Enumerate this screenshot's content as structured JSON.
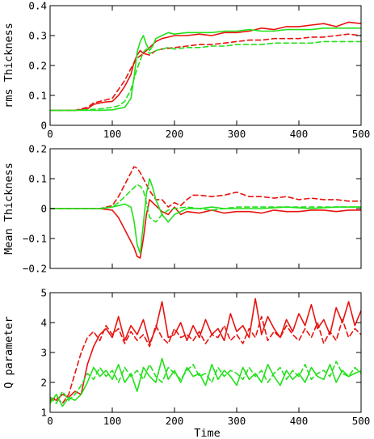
{
  "colors": {
    "red": "#e8130f",
    "green": "#22e11a",
    "black": "#000000"
  },
  "chart_data": [
    {
      "type": "line",
      "title": "",
      "xlabel": "",
      "ylabel": "rms Thickness",
      "xlim": [
        0,
        500
      ],
      "ylim": [
        0,
        0.4
      ],
      "xticks": [
        0,
        100,
        200,
        300,
        400,
        500
      ],
      "xtick_labels": [
        "0",
        "100",
        "200",
        "300",
        "400",
        "500"
      ],
      "yticks": [
        0,
        0.1,
        0.2,
        0.3,
        0.4
      ],
      "ytick_labels": [
        "0",
        "0.1",
        "0.2",
        "0.3",
        "0.4"
      ],
      "grid": false,
      "series": [
        {
          "color": "red",
          "style": "solid",
          "x": [
            0,
            40,
            60,
            70,
            80,
            90,
            100,
            110,
            120,
            130,
            135,
            140,
            145,
            150,
            160,
            170,
            180,
            190,
            200,
            220,
            240,
            260,
            280,
            300,
            320,
            340,
            360,
            380,
            400,
            420,
            440,
            460,
            480,
            500
          ],
          "y": [
            0.05,
            0.05,
            0.055,
            0.07,
            0.075,
            0.078,
            0.08,
            0.1,
            0.13,
            0.17,
            0.21,
            0.235,
            0.25,
            0.24,
            0.26,
            0.28,
            0.29,
            0.295,
            0.3,
            0.3,
            0.305,
            0.3,
            0.31,
            0.31,
            0.315,
            0.325,
            0.32,
            0.33,
            0.33,
            0.335,
            0.34,
            0.33,
            0.345,
            0.34
          ]
        },
        {
          "color": "red",
          "style": "dashed",
          "x": [
            0,
            40,
            60,
            70,
            80,
            90,
            100,
            110,
            120,
            130,
            140,
            150,
            160,
            170,
            180,
            200,
            220,
            240,
            260,
            280,
            300,
            320,
            340,
            360,
            380,
            400,
            420,
            440,
            460,
            480,
            500
          ],
          "y": [
            0.05,
            0.05,
            0.06,
            0.075,
            0.08,
            0.085,
            0.09,
            0.12,
            0.15,
            0.19,
            0.225,
            0.24,
            0.235,
            0.25,
            0.255,
            0.26,
            0.265,
            0.27,
            0.27,
            0.275,
            0.28,
            0.285,
            0.285,
            0.29,
            0.29,
            0.29,
            0.295,
            0.295,
            0.3,
            0.305,
            0.3
          ]
        },
        {
          "color": "green",
          "style": "solid",
          "x": [
            0,
            40,
            80,
            100,
            120,
            130,
            135,
            140,
            145,
            150,
            155,
            160,
            165,
            170,
            180,
            190,
            200,
            220,
            240,
            260,
            280,
            300,
            320,
            340,
            360,
            380,
            400,
            420,
            440,
            460,
            480,
            500
          ],
          "y": [
            0.05,
            0.05,
            0.05,
            0.052,
            0.06,
            0.09,
            0.16,
            0.245,
            0.28,
            0.3,
            0.27,
            0.25,
            0.265,
            0.29,
            0.3,
            0.31,
            0.305,
            0.31,
            0.31,
            0.31,
            0.315,
            0.315,
            0.32,
            0.315,
            0.315,
            0.32,
            0.32,
            0.32,
            0.325,
            0.325,
            0.325,
            0.325
          ]
        },
        {
          "color": "green",
          "style": "dashed",
          "x": [
            0,
            40,
            80,
            100,
            110,
            120,
            130,
            140,
            150,
            155,
            160,
            170,
            180,
            190,
            200,
            220,
            240,
            260,
            280,
            300,
            320,
            340,
            360,
            380,
            400,
            420,
            440,
            460,
            480,
            500
          ],
          "y": [
            0.05,
            0.05,
            0.055,
            0.06,
            0.065,
            0.08,
            0.12,
            0.19,
            0.245,
            0.255,
            0.24,
            0.25,
            0.255,
            0.26,
            0.255,
            0.26,
            0.26,
            0.265,
            0.265,
            0.27,
            0.27,
            0.27,
            0.275,
            0.275,
            0.275,
            0.275,
            0.28,
            0.28,
            0.28,
            0.28
          ]
        }
      ]
    },
    {
      "type": "line",
      "title": "",
      "xlabel": "",
      "ylabel": "Mean Thickness",
      "xlim": [
        0,
        500
      ],
      "ylim": [
        -0.2,
        0.2
      ],
      "xticks": [
        0,
        100,
        200,
        300,
        400,
        500
      ],
      "xtick_labels": [
        "0",
        "100",
        "200",
        "300",
        "400",
        "500"
      ],
      "yticks": [
        -0.2,
        -0.1,
        0,
        0.1,
        0.2
      ],
      "ytick_labels": [
        "−0.2",
        "−0.1",
        "0",
        "0.1",
        "0.2"
      ],
      "grid": false,
      "series": [
        {
          "color": "red",
          "style": "solid",
          "x": [
            0,
            80,
            100,
            110,
            120,
            130,
            135,
            140,
            145,
            150,
            155,
            160,
            170,
            180,
            190,
            200,
            210,
            220,
            240,
            260,
            280,
            300,
            320,
            340,
            360,
            380,
            400,
            420,
            440,
            460,
            480,
            500
          ],
          "y": [
            0,
            0,
            -0.005,
            -0.03,
            -0.07,
            -0.11,
            -0.13,
            -0.16,
            -0.165,
            -0.1,
            -0.02,
            0.03,
            0.01,
            -0.01,
            -0.02,
            0.005,
            -0.02,
            -0.01,
            -0.015,
            -0.005,
            -0.015,
            -0.01,
            -0.01,
            -0.015,
            -0.005,
            -0.01,
            -0.01,
            -0.005,
            -0.005,
            -0.01,
            -0.005,
            -0.005
          ]
        },
        {
          "color": "red",
          "style": "dashed",
          "x": [
            0,
            80,
            100,
            110,
            120,
            130,
            135,
            140,
            145,
            150,
            160,
            170,
            180,
            190,
            200,
            210,
            220,
            230,
            240,
            260,
            280,
            300,
            320,
            340,
            360,
            380,
            400,
            420,
            440,
            460,
            480,
            500
          ],
          "y": [
            0,
            0,
            0.01,
            0.04,
            0.08,
            0.12,
            0.14,
            0.135,
            0.12,
            0.1,
            0.06,
            0.03,
            0.03,
            0.005,
            0.02,
            0.01,
            0.03,
            0.045,
            0.045,
            0.04,
            0.045,
            0.055,
            0.04,
            0.04,
            0.035,
            0.04,
            0.03,
            0.035,
            0.03,
            0.03,
            0.025,
            0.025
          ]
        },
        {
          "color": "green",
          "style": "solid",
          "x": [
            0,
            80,
            100,
            110,
            120,
            130,
            135,
            140,
            145,
            150,
            155,
            160,
            165,
            170,
            180,
            190,
            200,
            220,
            240,
            260,
            280,
            300,
            340,
            380,
            420,
            460,
            500
          ],
          "y": [
            0,
            0,
            0.005,
            0.01,
            0.015,
            0.005,
            -0.04,
            -0.12,
            -0.15,
            -0.05,
            0.05,
            0.1,
            0.07,
            0.03,
            -0.02,
            -0.045,
            -0.02,
            0.0,
            0.0,
            0.005,
            0.0,
            0.0,
            0.0,
            0.005,
            0.0,
            0.005,
            0.005
          ]
        },
        {
          "color": "green",
          "style": "dashed",
          "x": [
            0,
            80,
            100,
            110,
            120,
            130,
            140,
            145,
            150,
            155,
            160,
            170,
            180,
            190,
            200,
            220,
            240,
            260,
            280,
            300,
            340,
            380,
            420,
            460,
            500
          ],
          "y": [
            0,
            0,
            0.005,
            0.02,
            0.04,
            0.06,
            0.08,
            0.075,
            0.06,
            0.02,
            -0.03,
            -0.045,
            -0.02,
            -0.005,
            0.0,
            0.005,
            0.0,
            -0.005,
            0.0,
            0.005,
            0.005,
            0.005,
            0.005,
            0.005,
            0.005
          ]
        }
      ]
    },
    {
      "type": "line",
      "title": "",
      "xlabel": "Time",
      "ylabel": "Q parameter",
      "xlim": [
        0,
        500
      ],
      "ylim": [
        1,
        5
      ],
      "xticks": [
        0,
        100,
        200,
        300,
        400,
        500
      ],
      "xtick_labels": [
        "0",
        "100",
        "200",
        "300",
        "400",
        "500"
      ],
      "yticks": [
        1,
        2,
        3,
        4,
        5
      ],
      "ytick_labels": [
        "1",
        "2",
        "3",
        "4",
        "5"
      ],
      "grid": false,
      "series": [
        {
          "color": "red",
          "style": "solid",
          "x": [
            0,
            10,
            20,
            30,
            40,
            50,
            60,
            70,
            80,
            90,
            100,
            110,
            120,
            130,
            140,
            150,
            160,
            170,
            180,
            190,
            200,
            210,
            220,
            230,
            240,
            250,
            260,
            270,
            280,
            290,
            300,
            310,
            320,
            330,
            340,
            350,
            360,
            370,
            380,
            390,
            400,
            410,
            420,
            430,
            440,
            450,
            460,
            470,
            480,
            490,
            500
          ],
          "y": [
            1.5,
            1.4,
            1.6,
            1.5,
            1.7,
            1.6,
            2.6,
            3.2,
            3.6,
            3.8,
            3.5,
            4.2,
            3.4,
            3.9,
            3.6,
            4.1,
            3.3,
            3.8,
            4.7,
            3.5,
            3.6,
            4.0,
            3.4,
            3.9,
            3.5,
            4.1,
            3.6,
            3.8,
            3.4,
            4.3,
            3.7,
            3.9,
            3.5,
            4.8,
            3.6,
            4.2,
            3.8,
            3.5,
            4.1,
            3.7,
            4.3,
            3.9,
            4.6,
            3.8,
            4.1,
            3.6,
            4.5,
            4.0,
            4.7,
            3.9,
            4.4
          ]
        },
        {
          "color": "red",
          "style": "dashed",
          "x": [
            0,
            10,
            20,
            30,
            40,
            50,
            60,
            70,
            80,
            90,
            100,
            110,
            120,
            130,
            140,
            150,
            160,
            170,
            180,
            190,
            200,
            210,
            220,
            230,
            240,
            250,
            260,
            270,
            280,
            290,
            300,
            310,
            320,
            330,
            340,
            350,
            360,
            370,
            380,
            390,
            400,
            410,
            420,
            430,
            440,
            450,
            460,
            470,
            480,
            490,
            500
          ],
          "y": [
            1.4,
            1.5,
            1.3,
            1.6,
            2.3,
            3.0,
            3.5,
            3.7,
            3.4,
            3.9,
            3.6,
            3.8,
            3.3,
            3.7,
            3.4,
            3.6,
            3.2,
            3.9,
            3.5,
            3.3,
            3.8,
            3.5,
            3.6,
            3.4,
            3.7,
            3.3,
            3.6,
            3.5,
            3.9,
            3.4,
            3.6,
            3.3,
            3.8,
            3.5,
            4.2,
            3.4,
            3.7,
            3.5,
            3.9,
            3.6,
            3.4,
            3.8,
            3.5,
            4.0,
            3.3,
            3.7,
            3.4,
            4.1,
            3.5,
            3.8,
            3.6
          ]
        },
        {
          "color": "green",
          "style": "solid",
          "x": [
            0,
            10,
            20,
            30,
            40,
            50,
            60,
            70,
            80,
            90,
            100,
            110,
            120,
            130,
            140,
            150,
            160,
            170,
            180,
            190,
            200,
            210,
            220,
            230,
            240,
            250,
            260,
            270,
            280,
            290,
            300,
            310,
            320,
            330,
            340,
            350,
            360,
            370,
            380,
            390,
            400,
            410,
            420,
            430,
            440,
            450,
            460,
            470,
            480,
            490,
            500
          ],
          "y": [
            1.3,
            1.6,
            1.2,
            1.5,
            1.4,
            1.6,
            2.0,
            2.5,
            2.2,
            2.4,
            2.1,
            2.6,
            2.0,
            2.3,
            1.7,
            2.5,
            2.2,
            2.0,
            2.8,
            2.1,
            2.4,
            2.0,
            2.5,
            2.2,
            2.3,
            1.9,
            2.6,
            2.1,
            2.4,
            2.2,
            1.9,
            2.5,
            2.1,
            2.3,
            2.0,
            2.6,
            2.2,
            1.9,
            2.4,
            2.1,
            2.3,
            2.0,
            2.5,
            2.2,
            2.1,
            2.6,
            2.0,
            2.4,
            2.2,
            2.3,
            2.4
          ]
        },
        {
          "color": "green",
          "style": "dashed",
          "x": [
            0,
            10,
            20,
            30,
            40,
            50,
            60,
            70,
            80,
            90,
            100,
            110,
            120,
            130,
            140,
            150,
            160,
            170,
            180,
            190,
            200,
            210,
            220,
            230,
            240,
            250,
            260,
            270,
            280,
            290,
            300,
            310,
            320,
            330,
            340,
            350,
            360,
            370,
            380,
            390,
            400,
            410,
            420,
            430,
            440,
            450,
            460,
            470,
            480,
            490,
            500
          ],
          "y": [
            1.5,
            1.3,
            1.7,
            1.4,
            1.6,
            1.9,
            2.3,
            2.1,
            2.5,
            2.2,
            2.4,
            2.0,
            2.5,
            2.2,
            2.4,
            2.1,
            2.6,
            2.2,
            2.0,
            2.5,
            2.3,
            2.1,
            2.4,
            2.6,
            2.2,
            2.3,
            2.0,
            2.5,
            2.2,
            2.4,
            2.3,
            2.1,
            2.5,
            2.2,
            2.4,
            2.0,
            2.3,
            2.5,
            2.1,
            2.4,
            2.2,
            2.6,
            2.1,
            2.3,
            2.4,
            2.2,
            2.7,
            2.3,
            2.2,
            2.5,
            2.3
          ]
        }
      ]
    }
  ]
}
